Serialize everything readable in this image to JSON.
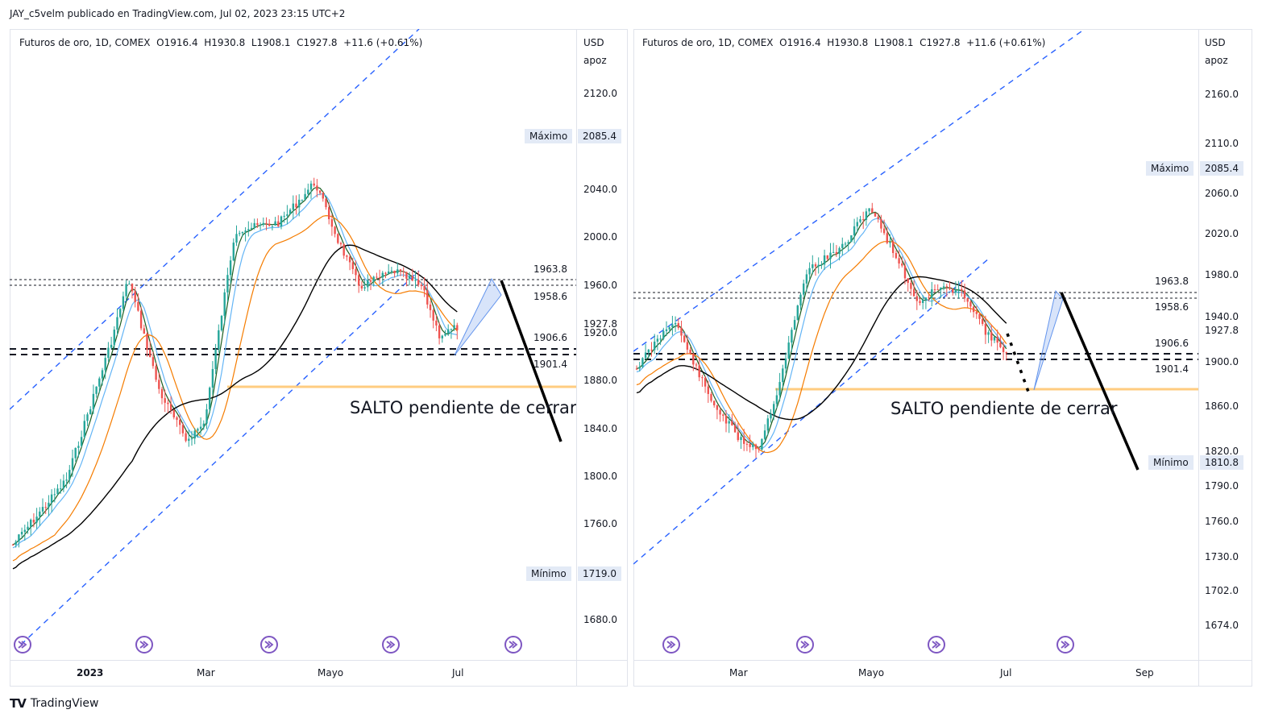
{
  "header": {
    "publisher_line": "JAY_c5velm publicado en TradingView.com, Jul 02, 2023 23:15 UTC+2"
  },
  "colors": {
    "accent_blue": "#2962ff",
    "bull": "#26a69a",
    "bear": "#ef5350",
    "gap": "#ffcc80",
    "event": "#7e57c2"
  },
  "left_chart": {
    "legend": "Futuros de oro, 1D, COMEX  O1916.4  H1930.8  L1908.1  C1927.8  +11.6 (+0.61%)",
    "currency": "USD",
    "currency_sub": "apoz",
    "y_ticks": [
      "2120.0",
      "2040.0",
      "2000.0",
      "1960.0",
      "1920.0",
      "1880.0",
      "1840.0",
      "1800.0",
      "1760.0",
      "1680.0"
    ],
    "max_label": "Máximo",
    "max_value": "2085.4",
    "min_label": "Mínimo",
    "min_value": "1719.0",
    "level_labels": [
      "1963.8",
      "1958.6",
      "1927.8",
      "1906.6",
      "1901.4"
    ],
    "annotation": "SALTO pendiente de cerrar",
    "months": [
      "2023",
      "Mar",
      "Mayo",
      "Jul"
    ]
  },
  "right_chart": {
    "legend": "Futuros de oro, 1D, COMEX  O1916.4  H1930.8  L1908.1  C1927.8  +11.6 (+0.61%)",
    "currency": "USD",
    "currency_sub": "apoz",
    "y_ticks": [
      "2160.0",
      "2110.0",
      "2060.0",
      "2020.0",
      "1980.0",
      "1940.0",
      "1900.0",
      "1860.0",
      "1820.0",
      "1790.0",
      "1760.0",
      "1730.0",
      "1702.0",
      "1674.0"
    ],
    "max_label": "Máximo",
    "max_value": "2085.4",
    "min_label": "Mínimo",
    "min_value": "1810.8",
    "level_labels": [
      "1963.8",
      "1958.6",
      "1927.8",
      "1906.6",
      "1901.4"
    ],
    "annotation": "SALTO pendiente de cerrar",
    "months": [
      "Mar",
      "Mayo",
      "Jul",
      "Sep"
    ]
  },
  "footer": {
    "brand": "TradingView",
    "logo": "TV"
  }
}
